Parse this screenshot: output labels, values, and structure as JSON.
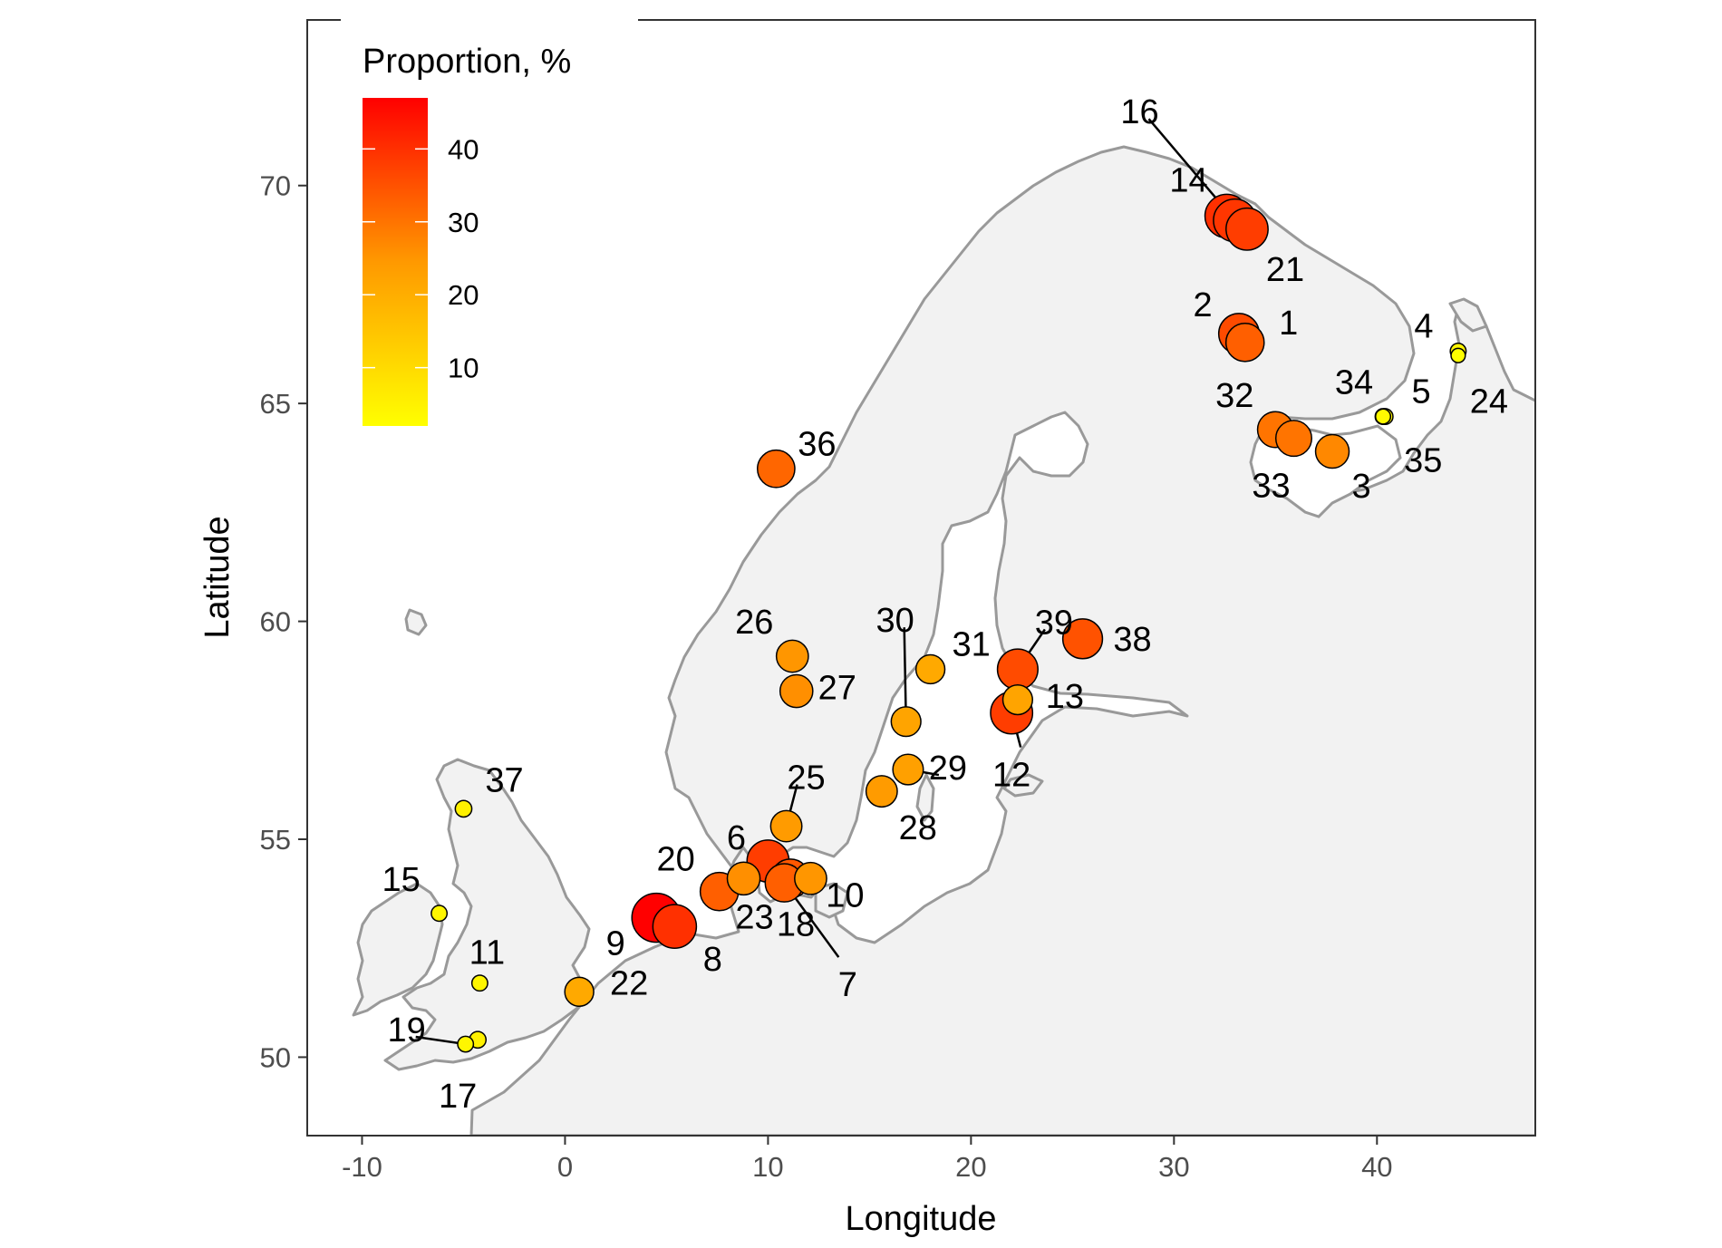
{
  "map": {
    "xlabel": "Longitude",
    "ylabel": "Latitude",
    "xlim": [
      -12.7,
      47.8
    ],
    "ylim": [
      48.2,
      73.8
    ],
    "x_ticks": [
      -10,
      0,
      10,
      20,
      30,
      40
    ],
    "x_tick_labels": [
      "-10",
      "0",
      "10",
      "20",
      "30",
      "40"
    ],
    "y_ticks": [
      50,
      55,
      60,
      65,
      70
    ],
    "y_tick_labels": [
      "50",
      "55",
      "60",
      "65",
      "70"
    ],
    "land_color": "#f2f2f2",
    "coast_color": "#999999",
    "legend": {
      "title": "Proportion, %",
      "placement": "top-left",
      "min": 2,
      "max": 47,
      "ticks": [
        10,
        20,
        30,
        40
      ],
      "tick_labels": [
        "10",
        "20",
        "30",
        "40"
      ],
      "color_low": "#ffff00",
      "color_high": "#ff0000"
    }
  },
  "chart_data": {
    "type": "scatter",
    "x_var": "Longitude",
    "y_var": "Latitude",
    "color_var": "Proportion, %",
    "points": [
      {
        "id": "1",
        "lon": 33.5,
        "lat": 66.4,
        "value": 33
      },
      {
        "id": "2",
        "lon": 33.2,
        "lat": 66.6,
        "value": 36
      },
      {
        "id": "3",
        "lon": 37.8,
        "lat": 63.9,
        "value": 27
      },
      {
        "id": "4",
        "lon": 44.0,
        "lat": 66.2,
        "value": 4
      },
      {
        "id": "5",
        "lon": 40.3,
        "lat": 64.7,
        "value": 4
      },
      {
        "id": "6",
        "lon": 10.0,
        "lat": 54.5,
        "value": 38
      },
      {
        "id": "7",
        "lon": 10.8,
        "lat": 54.0,
        "value": 33
      },
      {
        "id": "8",
        "lon": 5.4,
        "lat": 53.0,
        "value": 40
      },
      {
        "id": "9",
        "lon": 4.5,
        "lat": 53.2,
        "value": 47
      },
      {
        "id": "10",
        "lon": 12.1,
        "lat": 54.1,
        "value": 25
      },
      {
        "id": "11",
        "lon": -4.2,
        "lat": 51.7,
        "value": 4
      },
      {
        "id": "12",
        "lon": 22.0,
        "lat": 57.9,
        "value": 38
      },
      {
        "id": "13",
        "lon": 22.3,
        "lat": 58.2,
        "value": 22
      },
      {
        "id": "14",
        "lon": 32.6,
        "lat": 69.3,
        "value": 40
      },
      {
        "id": "15",
        "lon": -6.2,
        "lat": 53.3,
        "value": 4
      },
      {
        "id": "16",
        "lon": 33.0,
        "lat": 69.2,
        "value": 39
      },
      {
        "id": "17",
        "lon": -4.3,
        "lat": 50.4,
        "value": 5
      },
      {
        "id": "18",
        "lon": 11.1,
        "lat": 54.1,
        "value": 34
      },
      {
        "id": "19",
        "lon": -4.9,
        "lat": 50.3,
        "value": 4
      },
      {
        "id": "20",
        "lon": 7.6,
        "lat": 53.8,
        "value": 33
      },
      {
        "id": "21",
        "lon": 33.6,
        "lat": 69.0,
        "value": 38
      },
      {
        "id": "22",
        "lon": 0.7,
        "lat": 51.5,
        "value": 21
      },
      {
        "id": "23",
        "lon": 8.8,
        "lat": 54.1,
        "value": 26
      },
      {
        "id": "24",
        "lon": 44.0,
        "lat": 66.1,
        "value": 2
      },
      {
        "id": "25",
        "lon": 10.9,
        "lat": 55.3,
        "value": 24
      },
      {
        "id": "26",
        "lon": 11.2,
        "lat": 59.2,
        "value": 25
      },
      {
        "id": "27",
        "lon": 11.4,
        "lat": 58.4,
        "value": 26
      },
      {
        "id": "28",
        "lon": 15.6,
        "lat": 56.1,
        "value": 24
      },
      {
        "id": "29",
        "lon": 16.9,
        "lat": 56.6,
        "value": 23
      },
      {
        "id": "30",
        "lon": 16.8,
        "lat": 57.7,
        "value": 22
      },
      {
        "id": "31",
        "lon": 18.0,
        "lat": 58.9,
        "value": 21
      },
      {
        "id": "32",
        "lon": 35.0,
        "lat": 64.4,
        "value": 30
      },
      {
        "id": "33",
        "lon": 35.9,
        "lat": 64.2,
        "value": 30
      },
      {
        "id": "34",
        "lon": 40.3,
        "lat": 64.7,
        "value": 3
      },
      {
        "id": "35",
        "lon": 40.4,
        "lat": 64.7,
        "value": 4
      },
      {
        "id": "36",
        "lon": 10.4,
        "lat": 63.5,
        "value": 32
      },
      {
        "id": "37",
        "lon": -5.0,
        "lat": 55.7,
        "value": 5
      },
      {
        "id": "38",
        "lon": 25.5,
        "lat": 59.6,
        "value": 35
      },
      {
        "id": "39",
        "lon": 22.3,
        "lat": 58.9,
        "value": 36
      }
    ]
  }
}
